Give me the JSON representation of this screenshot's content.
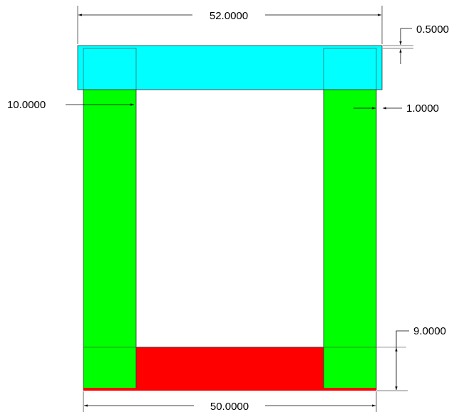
{
  "colors": {
    "cap_plate": "#00ffff",
    "column": "#00ff00",
    "base_beam": "#ff0000",
    "background": "#ffffff",
    "line": "#000000"
  },
  "dimensions": {
    "overall_width": "52.0000",
    "cap_thickness": "0.5000",
    "column_width": "10.0000",
    "side_offset": "1.0000",
    "base_height": "9.0000",
    "inner_width": "50.0000"
  }
}
